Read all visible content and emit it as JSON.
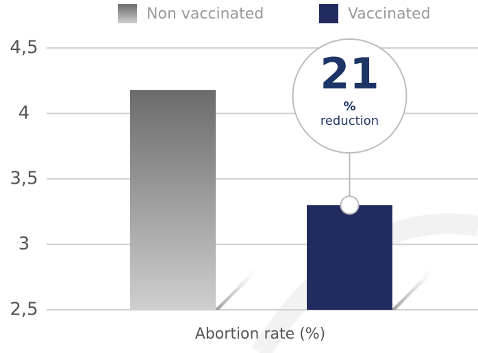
{
  "chart_data": {
    "type": "bar",
    "categories": [
      null
    ],
    "series": [
      {
        "name": "Non vaccinated",
        "color": "#6b6b6b",
        "values": [
          4.18
        ]
      },
      {
        "name": "Vaccinated",
        "color": "#222b5f",
        "values": [
          3.3
        ]
      }
    ],
    "x_label": "Abortion rate (%)",
    "ylim": [
      2.5,
      4.5
    ],
    "yticks": [
      {
        "value": 2.5,
        "label": "2,5"
      },
      3,
      {
        "value": 3.5,
        "label": "3,5"
      },
      4,
      {
        "value": 4.5,
        "label": "4,5"
      }
    ],
    "grid": true,
    "legend": "top",
    "annotation": {
      "number": 21,
      "unit": "%",
      "text": "reduction"
    }
  }
}
